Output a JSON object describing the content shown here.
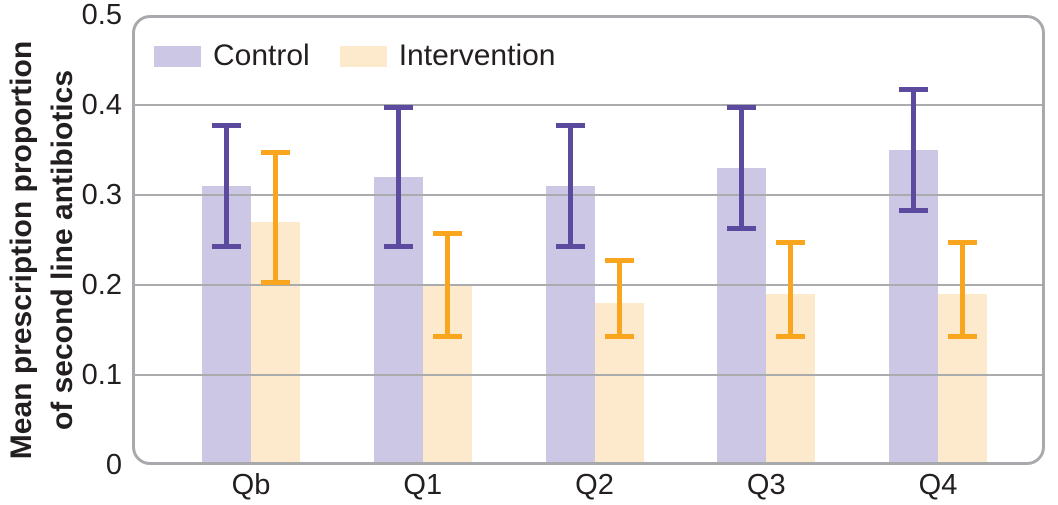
{
  "figure": {
    "y_axis": {
      "title_lines": [
        "Mean prescription proportion",
        "of second line antibiotics"
      ],
      "ticks": [
        {
          "v": 0.5,
          "label": "0.5"
        },
        {
          "v": 0.4,
          "label": "0.4"
        },
        {
          "v": 0.3,
          "label": "0.3"
        },
        {
          "v": 0.2,
          "label": "0.2"
        },
        {
          "v": 0.1,
          "label": "0.1"
        },
        {
          "v": 0,
          "label": "0"
        }
      ]
    },
    "x_axis": {
      "tick_labels": [
        "Qb",
        "Q1",
        "Q2",
        "Q3",
        "Q4"
      ]
    },
    "colors": {
      "control_bar": "#cdc7e6",
      "control_error": "#5c4a9e",
      "intervention_bar": "#fdeacd",
      "intervention_error": "#f9a51d",
      "gridline": "#a9abad",
      "frame_border": "#a7a9ac",
      "text": "#231f20"
    }
  },
  "chart_data": {
    "type": "bar",
    "title": "",
    "xlabel": "",
    "ylabel": "Mean prescription proportion of second line antibiotics",
    "ylim": [
      0,
      0.5
    ],
    "yticks": [
      0,
      0.1,
      0.2,
      0.3,
      0.4,
      0.5
    ],
    "grid": true,
    "grid_over_bars": true,
    "legend_position": "top-left",
    "categories": [
      "Qb",
      "Q1",
      "Q2",
      "Q3",
      "Q4"
    ],
    "series": [
      {
        "name": "Control",
        "color": "#cdc7e6",
        "error_color": "#5c4a9e",
        "values": [
          0.31,
          0.32,
          0.31,
          0.33,
          0.35
        ],
        "error_low": [
          0.24,
          0.24,
          0.24,
          0.26,
          0.28
        ],
        "error_high": [
          0.38,
          0.4,
          0.38,
          0.4,
          0.42
        ]
      },
      {
        "name": "Intervention",
        "color": "#fdeacd",
        "error_color": "#f9a51d",
        "values": [
          0.27,
          0.2,
          0.18,
          0.19,
          0.19
        ],
        "error_low": [
          0.2,
          0.14,
          0.14,
          0.14,
          0.14
        ],
        "error_high": [
          0.35,
          0.26,
          0.23,
          0.25,
          0.25
        ]
      }
    ]
  }
}
